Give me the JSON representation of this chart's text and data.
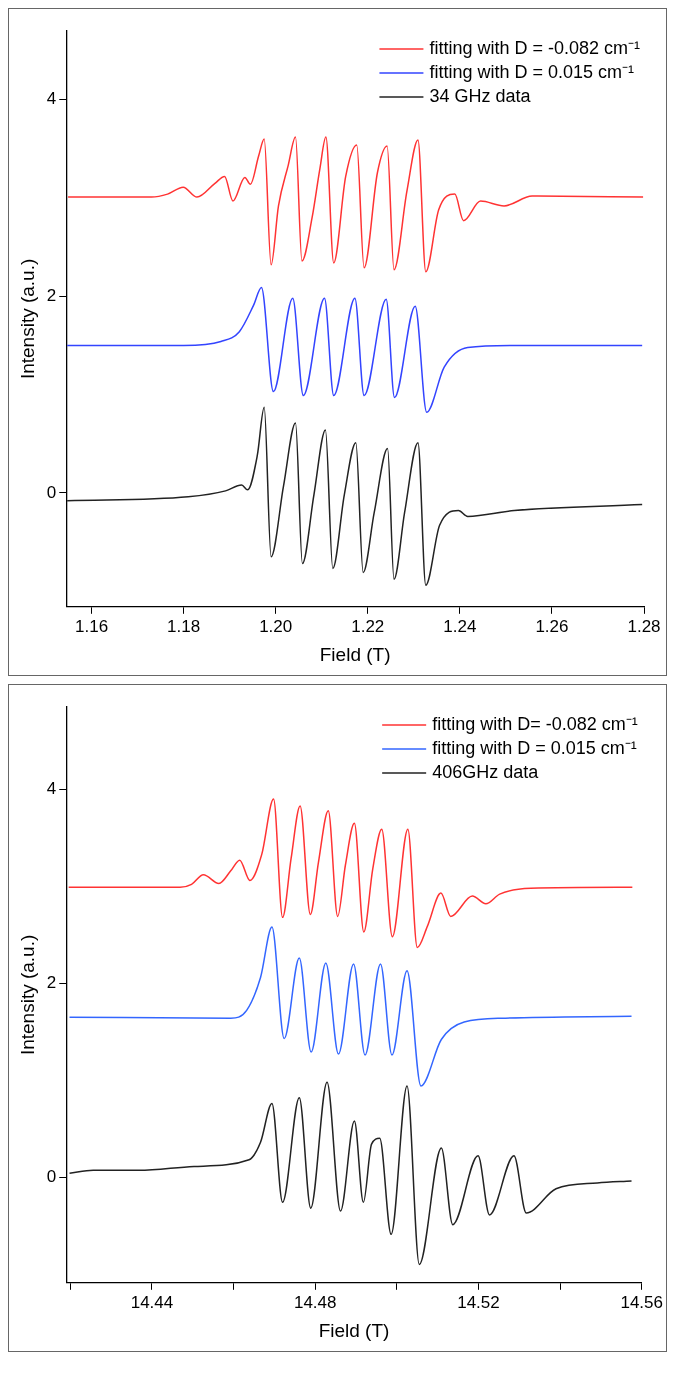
{
  "chart_data": [
    {
      "type": "line",
      "xlabel": "Field (T)",
      "ylabel": "Intensity (a.u.)",
      "xlim": [
        1.1545,
        1.28
      ],
      "ylim": [
        -1.16,
        4.7
      ],
      "xticks": [
        1.16,
        1.18,
        {
          "value": 1.2,
          "label": "1.20"
        },
        1.22,
        1.24,
        1.26,
        1.28
      ],
      "yticks": [
        0,
        2,
        4
      ],
      "grid": false,
      "legend": "top right",
      "marker": "none",
      "line_style": "solid",
      "series": [
        {
          "name": "fitting with D = -0.082 cm⁻¹",
          "color": "#ff3333",
          "x": [
            1.1549,
            1.173,
            1.1765,
            1.1799,
            1.1829,
            1.1868,
            1.1889,
            1.1907,
            1.1933,
            1.1945,
            1.1963,
            1.1975,
            1.199,
            1.2006,
            1.2027,
            1.2043,
            1.2057,
            1.2079,
            1.2096,
            1.2109,
            1.2126,
            1.2152,
            1.2176,
            1.2192,
            1.2221,
            1.2242,
            1.2257,
            1.2285,
            1.2309,
            1.2326,
            1.2354,
            1.2389,
            1.2408,
            1.2445,
            1.2496,
            1.2557,
            1.2798
          ],
          "values": [
            3.01,
            3.01,
            3.04,
            3.11,
            3.01,
            3.15,
            3.22,
            2.97,
            3.21,
            3.14,
            3.43,
            3.6,
            2.32,
            2.92,
            3.33,
            3.62,
            2.36,
            2.8,
            3.3,
            3.62,
            2.34,
            3.22,
            3.54,
            2.29,
            3.26,
            3.53,
            2.27,
            3.07,
            3.59,
            2.25,
            2.88,
            3.04,
            2.77,
            2.97,
            2.92,
            3.02,
            3.01
          ]
        },
        {
          "name": "fitting with D = 0.015 cm⁻¹",
          "color": "#3344ff",
          "x": [
            1.1547,
            1.18,
            1.1881,
            1.1921,
            1.1952,
            1.1969,
            1.1995,
            1.2037,
            1.206,
            1.2106,
            1.2126,
            1.2172,
            1.2192,
            1.224,
            1.2258,
            1.2303,
            1.2328,
            1.2366,
            1.2417,
            1.2518,
            1.2796
          ],
          "values": [
            1.5,
            1.5,
            1.54,
            1.64,
            1.91,
            2.09,
            1.03,
            1.98,
            0.99,
            1.98,
            0.99,
            1.98,
            0.99,
            1.97,
            0.97,
            1.9,
            0.82,
            1.28,
            1.48,
            1.5,
            1.5
          ]
        },
        {
          "name": "34 GHz data",
          "color": "#222222",
          "x": [
            1.1547,
            1.181,
            1.1891,
            1.1926,
            1.1939,
            1.196,
            1.1975,
            1.199,
            1.2017,
            1.2043,
            1.2058,
            1.2083,
            1.2108,
            1.2124,
            1.2149,
            1.2174,
            1.219,
            1.2214,
            1.2243,
            1.2257,
            1.228,
            1.2309,
            1.2326,
            1.2356,
            1.2397,
            1.2417,
            1.2518,
            1.2796
          ],
          "values": [
            -0.08,
            -0.04,
            0.02,
            0.08,
            0.03,
            0.38,
            0.87,
            -0.65,
            0.07,
            0.71,
            -0.72,
            -0.02,
            0.64,
            -0.77,
            -0.02,
            0.51,
            -0.81,
            -0.2,
            0.45,
            -0.88,
            -0.2,
            0.51,
            -0.94,
            -0.33,
            -0.18,
            -0.24,
            -0.18,
            -0.12
          ]
        }
      ]
    },
    {
      "type": "line",
      "xlabel": "Field (T)",
      "ylabel": "Intensity (a.u.)",
      "xlim": [
        14.419,
        14.56
      ],
      "ylim": [
        -1.09,
        4.85
      ],
      "xticks": [
        {
          "value": 14.42,
          "label": null
        },
        14.44,
        {
          "value": 14.46,
          "label": null
        },
        14.48,
        {
          "value": 14.5,
          "label": null
        },
        14.52,
        {
          "value": 14.54,
          "label": null
        },
        14.56
      ],
      "yticks": [
        0,
        2,
        4
      ],
      "grid": false,
      "legend": "top right",
      "marker": "none",
      "line_style": "solid",
      "series": [
        {
          "name": "fitting with D= -0.082 cm⁻¹",
          "color": "#ff3333",
          "x": [
            14.4196,
            14.4469,
            14.4497,
            14.4526,
            14.4564,
            14.4593,
            14.4615,
            14.464,
            14.4669,
            14.4698,
            14.472,
            14.4741,
            14.4763,
            14.4788,
            14.4808,
            14.4832,
            14.4855,
            14.4874,
            14.4896,
            14.4919,
            14.4941,
            14.4963,
            14.4989,
            14.5027,
            14.505,
            14.5075,
            14.5108,
            14.5132,
            14.5185,
            14.5218,
            14.5252,
            14.5328,
            14.5577
          ],
          "values": [
            2.99,
            2.99,
            3.02,
            3.12,
            3.03,
            3.16,
            3.27,
            3.06,
            3.33,
            3.9,
            2.68,
            3.29,
            3.83,
            2.71,
            3.25,
            3.78,
            2.69,
            3.22,
            3.65,
            2.53,
            3.18,
            3.59,
            2.48,
            3.59,
            2.37,
            2.59,
            2.93,
            2.69,
            2.9,
            2.82,
            2.92,
            2.98,
            2.99
          ]
        },
        {
          "name": "fitting with D = 0.015 cm⁻¹",
          "color": "#3366ff",
          "x": [
            14.4198,
            14.4593,
            14.4632,
            14.4666,
            14.4694,
            14.4724,
            14.4761,
            14.479,
            14.4826,
            14.4857,
            14.4894,
            14.4922,
            14.496,
            14.4988,
            14.5025,
            14.5059,
            14.5109,
            14.5165,
            14.5266,
            14.5575
          ],
          "values": [
            1.65,
            1.64,
            1.72,
            2.06,
            2.58,
            1.43,
            2.26,
            1.29,
            2.21,
            1.27,
            2.2,
            1.26,
            2.2,
            1.26,
            2.13,
            0.94,
            1.42,
            1.6,
            1.64,
            1.66
          ]
        },
        {
          "name": "406GHz data",
          "color": "#222222",
          "x": [
            14.4198,
            14.4256,
            14.4368,
            14.4503,
            14.4638,
            14.4666,
            14.4694,
            14.472,
            14.4761,
            14.4789,
            14.4829,
            14.4862,
            14.4896,
            14.4918,
            14.4938,
            14.4958,
            14.4986,
            14.5025,
            14.5055,
            14.5109,
            14.5137,
            14.5199,
            14.5227,
            14.5287,
            14.5317,
            14.539,
            14.5491,
            14.5575
          ],
          "values": [
            0.04,
            0.07,
            0.07,
            0.11,
            0.18,
            0.36,
            0.76,
            -0.26,
            0.82,
            -0.32,
            0.98,
            -0.35,
            0.58,
            -0.26,
            0.34,
            0.4,
            -0.59,
            0.94,
            -0.9,
            0.3,
            -0.49,
            0.22,
            -0.39,
            0.22,
            -0.37,
            -0.12,
            -0.06,
            -0.04
          ]
        }
      ]
    }
  ]
}
